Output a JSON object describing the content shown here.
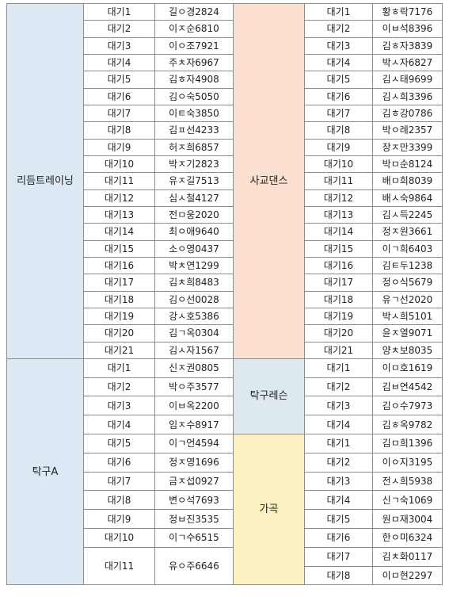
{
  "sections": [
    {
      "left": {
        "name": "리듬트레이닝",
        "rows": [
          [
            "대기1",
            "길ㅇ경2824"
          ],
          [
            "대기2",
            "이ㅈ순6810"
          ],
          [
            "대기3",
            "이ㅇ조7921"
          ],
          [
            "대기4",
            "주ㅊ자6967"
          ],
          [
            "대기5",
            "김ㅎ자4908"
          ],
          [
            "대기6",
            "김ㅇ숙5050"
          ],
          [
            "대기7",
            "이ㅌ숙3850"
          ],
          [
            "대기8",
            "김ㅍ선4233"
          ],
          [
            "대기9",
            "허ㅈ희6857"
          ],
          [
            "대기10",
            "박ㅈ기2823"
          ],
          [
            "대기11",
            "유ㅈ길7513"
          ],
          [
            "대기12",
            "심ㅅ철4127"
          ],
          [
            "대기13",
            "전ㅁ웅2020"
          ],
          [
            "대기14",
            "최ㅇ애9640"
          ],
          [
            "대기15",
            "소ㅇ영0437"
          ],
          [
            "대기16",
            "박ㅊ연1299"
          ],
          [
            "대기17",
            "김ㅊ희8483"
          ],
          [
            "대기18",
            "김ㅇ선0028"
          ],
          [
            "대기19",
            "강ㅅ호5386"
          ],
          [
            "대기20",
            "김ㄱ옥0304"
          ],
          [
            "대기21",
            "김ㅅ자1567"
          ]
        ]
      },
      "right": [
        {
          "name": "사교댄스",
          "rows": [
            [
              "대기1",
              "황ㅎ락7176"
            ],
            [
              "대기2",
              "이ㅂ석8396"
            ],
            [
              "대기3",
              "김ㅎ자3839"
            ],
            [
              "대기4",
              "박ㅅ자6827"
            ],
            [
              "대기5",
              "김ㅅ태9699"
            ],
            [
              "대기6",
              "김ㅅ희3396"
            ],
            [
              "대기7",
              "김ㅎ강0786"
            ],
            [
              "대기8",
              "박ㅇ례2357"
            ],
            [
              "대기9",
              "장ㅈ만3399"
            ],
            [
              "대기10",
              "박ㅁ순8124"
            ],
            [
              "대기11",
              "배ㅁ희8039"
            ],
            [
              "대기12",
              "배ㅅ숙9864"
            ],
            [
              "대기13",
              "김ㅅ득2245"
            ],
            [
              "대기14",
              "정ㅈ원3661"
            ],
            [
              "대기15",
              "이ㄱ희6403"
            ],
            [
              "대기16",
              "김ㅌ두1238"
            ],
            [
              "대기17",
              "정ㅇ식5679"
            ],
            [
              "대기18",
              "유ㄱ선2020"
            ],
            [
              "대기19",
              "박ㅅ희5101"
            ],
            [
              "대기20",
              "윤ㅈ열9071"
            ],
            [
              "대기21",
              "양ㅊ보8035"
            ]
          ]
        }
      ]
    },
    {
      "left": {
        "name": "탁구A",
        "rows": [
          [
            "대기1",
            "신ㅈ권0805"
          ],
          [
            "대기2",
            "박ㅇ주3577"
          ],
          [
            "대기3",
            "이ㅂ옥2200"
          ],
          [
            "대기4",
            "임ㅈ수8917"
          ],
          [
            "대기5",
            "이ㄱ언4594"
          ],
          [
            "대기6",
            "정ㅈ영1696"
          ],
          [
            "대기7",
            "금ㅈ섭0927"
          ],
          [
            "대기8",
            "변ㅇ석7693"
          ],
          [
            "대기9",
            "정ㅂ진3535"
          ],
          [
            "대기10",
            "이ㄱ수6515"
          ],
          [
            "대기11",
            "유ㅇ주6646"
          ]
        ]
      },
      "right": [
        {
          "name": "탁구레슨",
          "rows": [
            [
              "대기1",
              "이ㅁ호1619"
            ],
            [
              "대기2",
              "김ㅂ연4542"
            ],
            [
              "대기3",
              "김ㅇ수7973"
            ],
            [
              "대기4",
              "김ㅎ옥9782"
            ]
          ]
        },
        {
          "name": "가곡",
          "rows": [
            [
              "대기1",
              "김ㅁ희1396"
            ],
            [
              "대기2",
              "이ㅇ지3195"
            ],
            [
              "대기3",
              "전ㅅ희5938"
            ],
            [
              "대기4",
              "신ㄱ숙1069"
            ],
            [
              "대기5",
              "원ㅁ재3004"
            ],
            [
              "대기6",
              "한ㅇ미6324"
            ],
            [
              "대기7",
              "김ㅊ화0117"
            ],
            [
              "대기8",
              "이ㅁ현2297"
            ]
          ]
        }
      ]
    }
  ],
  "colors": {
    "blue": "#dde8f5",
    "peach": "#fbe0cf",
    "teal": "#dde9ef",
    "yellow": "#fcefc2"
  }
}
